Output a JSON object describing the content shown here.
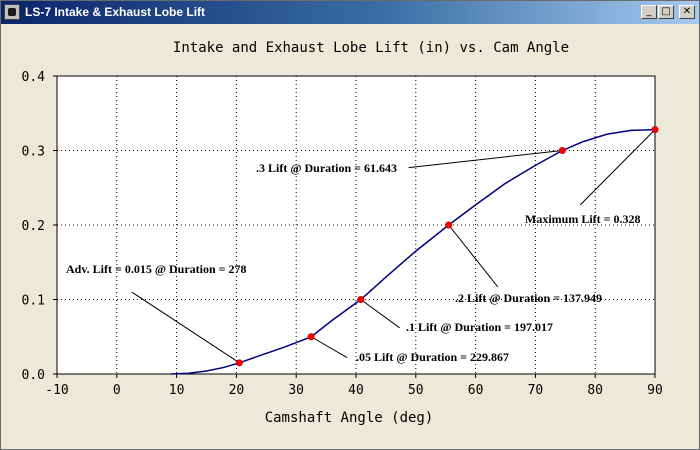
{
  "window": {
    "title": "LS-7 Intake & Exhaust Lobe Lift",
    "buttons": {
      "minimize": "_",
      "maximize": "□",
      "close": "✕"
    }
  },
  "colors": {
    "plot_background": "#ffffff",
    "curve": "#00007f",
    "marker": "#ff0000",
    "grid": "#000000",
    "annotation_line": "#000000"
  },
  "chart_data": {
    "type": "line",
    "title": "Intake and Exhaust Lobe Lift (in) vs. Cam Angle",
    "xlabel": "Camshaft Angle (deg)",
    "ylabel": "",
    "xlim": [
      -10,
      90
    ],
    "ylim": [
      0,
      0.4
    ],
    "x_ticks": [
      "-10",
      "0",
      "10",
      "20",
      "30",
      "40",
      "50",
      "60",
      "70",
      "80",
      "90"
    ],
    "y_ticks": [
      "0.0",
      "0.1",
      "0.2",
      "0.3",
      "0.4"
    ],
    "grid": true,
    "series": [
      {
        "x": [
          9,
          12,
          15,
          18,
          20.5,
          24,
          28,
          32.5,
          36,
          40.8,
          45,
          50,
          55.5,
          60,
          65,
          70,
          74.5,
          78,
          82,
          86,
          90
        ],
        "y": [
          0.0,
          0.001,
          0.004,
          0.009,
          0.015,
          0.025,
          0.036,
          0.05,
          0.072,
          0.1,
          0.13,
          0.165,
          0.2,
          0.227,
          0.256,
          0.28,
          0.3,
          0.312,
          0.322,
          0.327,
          0.328
        ]
      }
    ],
    "markers": [
      {
        "x": 20.5,
        "y": 0.015
      },
      {
        "x": 32.5,
        "y": 0.05
      },
      {
        "x": 40.8,
        "y": 0.1
      },
      {
        "x": 55.5,
        "y": 0.2
      },
      {
        "x": 74.5,
        "y": 0.3
      },
      {
        "x": 90,
        "y": 0.328
      }
    ],
    "annotations": [
      {
        "text": "Adv. Lift = 0.015 @ Duration = 278",
        "target": {
          "x": 20.5,
          "y": 0.015
        },
        "anchor": {
          "x": 2.5,
          "y": 0.11
        }
      },
      {
        "text": ".05 Lift @ Duration = 229.867",
        "target": {
          "x": 32.5,
          "y": 0.05
        },
        "anchor": {
          "x": 38.5,
          "y": 0.022
        }
      },
      {
        "text": ".1 Lift @ Duration = 197.017",
        "target": {
          "x": 40.8,
          "y": 0.1
        },
        "anchor": {
          "x": 47.3,
          "y": 0.062
        }
      },
      {
        "text": ".2 Lift @ Duration = 137.949",
        "target": {
          "x": 55.5,
          "y": 0.2
        },
        "anchor": {
          "x": 63.7,
          "y": 0.117
        }
      },
      {
        "text": ".3 Lift @ Duration = 61.643",
        "target": {
          "x": 74.5,
          "y": 0.3
        },
        "anchor": {
          "x": 48.8,
          "y": 0.277
        }
      },
      {
        "text": "Maximum Lift = 0.328",
        "target": {
          "x": 90,
          "y": 0.328
        },
        "anchor": {
          "x": 77.5,
          "y": 0.227
        }
      }
    ]
  }
}
